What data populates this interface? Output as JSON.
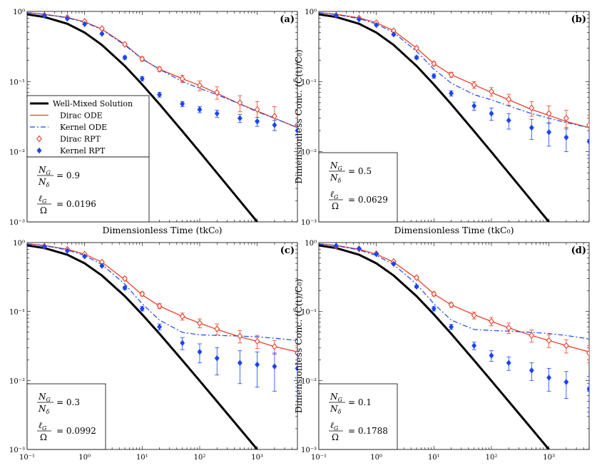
{
  "colors": {
    "well_mixed": "#000000",
    "dirac": "#e8412a",
    "kernel": "#1a45f2"
  },
  "legend_labels": [
    "Well-Mixed Solution",
    "Dirac ODE",
    "Kernel ODE",
    "Dirac RPT",
    "Kernel RPT"
  ],
  "chart_data": [
    {
      "type": "line",
      "panel_label": "(a)",
      "xscale": "log",
      "yscale": "log",
      "xlim": [
        0.1,
        5000
      ],
      "ylim": [
        0.001,
        1
      ],
      "xlabel": "Dimensionless Time (tkC₀)",
      "ylabel": "",
      "x_ticks": [
        "10⁻¹",
        "10⁰",
        "10¹",
        "10²",
        "10³"
      ],
      "y_ticks": [
        "10⁰",
        "10⁻¹",
        "10⁻²",
        "10⁻³"
      ],
      "show_x_tick_labels": false,
      "legend": true,
      "annotation": {
        "ng_ratio": "= 0.9",
        "lg_ratio": "= 0.0196"
      },
      "series": [
        {
          "name": "Well-Mixed Solution",
          "kind": "line",
          "x": [
            0.1,
            0.2,
            0.5,
            1,
            2,
            5,
            10,
            20,
            50,
            100,
            200,
            500,
            1000
          ],
          "y": [
            0.909,
            0.833,
            0.667,
            0.5,
            0.333,
            0.167,
            0.0909,
            0.0476,
            0.0196,
            0.0099,
            0.00498,
            0.002,
            0.001
          ]
        },
        {
          "name": "Dirac ODE",
          "kind": "line",
          "x": [
            0.1,
            0.2,
            0.5,
            1,
            2,
            5,
            10,
            20,
            50,
            100,
            200,
            500,
            1000,
            2000,
            5000
          ],
          "y": [
            0.96,
            0.91,
            0.82,
            0.71,
            0.56,
            0.34,
            0.21,
            0.15,
            0.11,
            0.088,
            0.068,
            0.048,
            0.038,
            0.03,
            0.022
          ]
        },
        {
          "name": "Kernel ODE",
          "kind": "line",
          "x": [
            0.1,
            0.2,
            0.5,
            1,
            2,
            5,
            10,
            20,
            50,
            100,
            200,
            500,
            1000,
            2000,
            5000
          ],
          "y": [
            0.96,
            0.905,
            0.81,
            0.7,
            0.55,
            0.33,
            0.21,
            0.15,
            0.1,
            0.08,
            0.065,
            0.048,
            0.037,
            0.03,
            0.022
          ]
        },
        {
          "name": "Dirac RPT",
          "kind": "markers",
          "x": [
            0.2,
            0.5,
            1,
            2,
            5,
            10,
            20,
            50,
            100,
            200,
            500,
            1000,
            2000,
            5000
          ],
          "y": [
            0.88,
            0.82,
            0.72,
            0.57,
            0.34,
            0.21,
            0.15,
            0.11,
            0.088,
            0.07,
            0.05,
            0.04,
            0.032,
            0.024
          ],
          "err": [
            0.01,
            0.01,
            0.015,
            0.015,
            0.015,
            0.015,
            0.012,
            0.013,
            0.014,
            0.014,
            0.013,
            0.012,
            0.012,
            0.011
          ]
        },
        {
          "name": "Kernel RPT",
          "kind": "markers",
          "x": [
            0.2,
            0.5,
            1,
            2,
            5,
            10,
            20,
            50,
            100,
            200,
            500,
            1000,
            2000,
            5000
          ],
          "y": [
            0.87,
            0.79,
            0.66,
            0.48,
            0.22,
            0.11,
            0.065,
            0.048,
            0.04,
            0.035,
            0.03,
            0.027,
            0.024,
            0.02
          ],
          "err": [
            0.01,
            0.01,
            0.012,
            0.012,
            0.012,
            0.008,
            0.005,
            0.004,
            0.004,
            0.004,
            0.004,
            0.004,
            0.004,
            0.004
          ]
        }
      ]
    },
    {
      "type": "line",
      "panel_label": "(b)",
      "xscale": "log",
      "yscale": "log",
      "xlim": [
        0.1,
        5000
      ],
      "ylim": [
        0.001,
        1
      ],
      "xlabel": "Dimensionless Time (tkC₀)",
      "ylabel": "Dimensionless Conc. (C̄(t)/C₀)",
      "x_ticks": [
        "10⁻¹",
        "10⁰",
        "10¹",
        "10²",
        "10³"
      ],
      "y_ticks": [
        "10⁰",
        "10⁻¹",
        "10⁻²",
        "10⁻³"
      ],
      "show_x_tick_labels": false,
      "legend": false,
      "annotation": {
        "ng_ratio": "= 0.5",
        "lg_ratio": "= 0.0629"
      },
      "series": [
        {
          "name": "Well-Mixed Solution",
          "kind": "line",
          "x": [
            0.1,
            0.2,
            0.5,
            1,
            2,
            5,
            10,
            20,
            50,
            100,
            200,
            500,
            1000
          ],
          "y": [
            0.909,
            0.833,
            0.667,
            0.5,
            0.333,
            0.167,
            0.0909,
            0.0476,
            0.0196,
            0.0099,
            0.00498,
            0.002,
            0.001
          ]
        },
        {
          "name": "Dirac ODE",
          "kind": "line",
          "x": [
            0.1,
            0.2,
            0.5,
            1,
            2,
            5,
            10,
            20,
            50,
            100,
            200,
            500,
            1000,
            2000,
            5000
          ],
          "y": [
            0.96,
            0.91,
            0.81,
            0.69,
            0.53,
            0.3,
            0.18,
            0.125,
            0.09,
            0.07,
            0.055,
            0.04,
            0.033,
            0.027,
            0.022
          ]
        },
        {
          "name": "Kernel ODE",
          "kind": "line",
          "x": [
            0.1,
            0.2,
            0.5,
            1,
            2,
            5,
            10,
            20,
            50,
            100,
            200,
            500,
            1000,
            2000,
            5000
          ],
          "y": [
            0.96,
            0.9,
            0.79,
            0.66,
            0.5,
            0.27,
            0.15,
            0.095,
            0.065,
            0.055,
            0.045,
            0.035,
            0.03,
            0.026,
            0.022
          ]
        },
        {
          "name": "Dirac RPT",
          "kind": "markers",
          "x": [
            0.2,
            0.5,
            1,
            2,
            5,
            10,
            20,
            50,
            100,
            200,
            500,
            1000,
            2000,
            5000
          ],
          "y": [
            0.88,
            0.8,
            0.69,
            0.53,
            0.3,
            0.18,
            0.125,
            0.09,
            0.072,
            0.056,
            0.042,
            0.035,
            0.03,
            0.024
          ],
          "err": [
            0.01,
            0.01,
            0.015,
            0.015,
            0.015,
            0.012,
            0.01,
            0.01,
            0.01,
            0.01,
            0.01,
            0.01,
            0.009,
            0.009
          ]
        },
        {
          "name": "Kernel RPT",
          "kind": "markers",
          "x": [
            0.2,
            0.5,
            1,
            2,
            5,
            10,
            20,
            50,
            100,
            200,
            500,
            1000,
            2000,
            5000
          ],
          "y": [
            0.87,
            0.77,
            0.64,
            0.47,
            0.22,
            0.12,
            0.068,
            0.045,
            0.035,
            0.028,
            0.022,
            0.019,
            0.016,
            0.014
          ],
          "err": [
            0.01,
            0.01,
            0.012,
            0.012,
            0.01,
            0.008,
            0.006,
            0.006,
            0.007,
            0.007,
            0.007,
            0.007,
            0.006,
            0.006
          ]
        }
      ]
    },
    {
      "type": "line",
      "panel_label": "(c)",
      "xscale": "log",
      "yscale": "log",
      "xlim": [
        0.1,
        5000
      ],
      "ylim": [
        0.001,
        1
      ],
      "xlabel": "",
      "ylabel": "",
      "x_ticks": [
        "10⁻¹",
        "10⁰",
        "10¹",
        "10²",
        "10³"
      ],
      "y_ticks": [
        "10⁰",
        "10⁻¹",
        "10⁻²",
        "10⁻³"
      ],
      "show_x_tick_labels": true,
      "legend": false,
      "annotation": {
        "ng_ratio": "= 0.3",
        "lg_ratio": "= 0.0992"
      },
      "series": [
        {
          "name": "Well-Mixed Solution",
          "kind": "line",
          "x": [
            0.1,
            0.2,
            0.5,
            1,
            2,
            5,
            10,
            20,
            50,
            100,
            200,
            500,
            1000
          ],
          "y": [
            0.909,
            0.833,
            0.667,
            0.5,
            0.333,
            0.167,
            0.0909,
            0.0476,
            0.0196,
            0.0099,
            0.00498,
            0.002,
            0.001
          ]
        },
        {
          "name": "Dirac ODE",
          "kind": "line",
          "x": [
            0.1,
            0.2,
            0.5,
            1,
            2,
            5,
            10,
            20,
            50,
            100,
            200,
            500,
            1000,
            2000,
            5000
          ],
          "y": [
            0.96,
            0.91,
            0.8,
            0.68,
            0.52,
            0.29,
            0.175,
            0.12,
            0.085,
            0.068,
            0.055,
            0.043,
            0.037,
            0.031,
            0.026
          ]
        },
        {
          "name": "Kernel ODE",
          "kind": "line",
          "x": [
            0.1,
            0.2,
            0.5,
            1,
            2,
            5,
            10,
            20,
            50,
            100,
            200,
            500,
            1000,
            2000,
            5000
          ],
          "y": [
            0.96,
            0.9,
            0.78,
            0.65,
            0.48,
            0.25,
            0.13,
            0.075,
            0.05,
            0.046,
            0.045,
            0.044,
            0.043,
            0.041,
            0.038
          ]
        },
        {
          "name": "Dirac RPT",
          "kind": "markers",
          "x": [
            0.2,
            0.5,
            1,
            2,
            5,
            10,
            20,
            50,
            100,
            200,
            500,
            1000,
            2000,
            5000
          ],
          "y": [
            0.88,
            0.8,
            0.68,
            0.52,
            0.3,
            0.18,
            0.12,
            0.085,
            0.068,
            0.056,
            0.044,
            0.037,
            0.031,
            0.025
          ],
          "err": [
            0.01,
            0.01,
            0.015,
            0.015,
            0.015,
            0.012,
            0.01,
            0.01,
            0.01,
            0.01,
            0.009,
            0.008,
            0.007,
            0.007
          ]
        },
        {
          "name": "Kernel RPT",
          "kind": "markers",
          "x": [
            0.2,
            0.5,
            1,
            2,
            5,
            10,
            20,
            50,
            100,
            200,
            500,
            1000,
            2000,
            5000
          ],
          "y": [
            0.87,
            0.76,
            0.63,
            0.46,
            0.22,
            0.11,
            0.06,
            0.035,
            0.026,
            0.021,
            0.018,
            0.017,
            0.016,
            0.015
          ],
          "err": [
            0.01,
            0.01,
            0.012,
            0.012,
            0.01,
            0.008,
            0.006,
            0.007,
            0.008,
            0.009,
            0.009,
            0.009,
            0.009,
            0.009
          ]
        }
      ]
    },
    {
      "type": "line",
      "panel_label": "(d)",
      "xscale": "log",
      "yscale": "log",
      "xlim": [
        0.1,
        5000
      ],
      "ylim": [
        0.001,
        1
      ],
      "xlabel": "",
      "ylabel": "Dimensionless Conc. (C̄(t)/C₀)",
      "x_ticks": [
        "10⁻¹",
        "10⁰",
        "10¹",
        "10²",
        "10³"
      ],
      "y_ticks": [
        "10⁰",
        "10⁻¹",
        "10⁻²",
        "10⁻³"
      ],
      "show_x_tick_labels": true,
      "legend": false,
      "annotation": {
        "ng_ratio": "= 0.1",
        "lg_ratio": "= 0.1788"
      },
      "series": [
        {
          "name": "Well-Mixed Solution",
          "kind": "line",
          "x": [
            0.1,
            0.2,
            0.5,
            1,
            2,
            5,
            10,
            20,
            50,
            100,
            200,
            500,
            1000
          ],
          "y": [
            0.909,
            0.833,
            0.667,
            0.5,
            0.333,
            0.167,
            0.0909,
            0.0476,
            0.0196,
            0.0099,
            0.00498,
            0.002,
            0.001
          ]
        },
        {
          "name": "Dirac ODE",
          "kind": "line",
          "x": [
            0.1,
            0.2,
            0.5,
            1,
            2,
            5,
            10,
            20,
            50,
            100,
            200,
            500,
            1000,
            2000,
            5000
          ],
          "y": [
            0.96,
            0.91,
            0.8,
            0.68,
            0.52,
            0.3,
            0.18,
            0.125,
            0.09,
            0.072,
            0.058,
            0.045,
            0.038,
            0.032,
            0.026
          ]
        },
        {
          "name": "Kernel ODE",
          "kind": "line",
          "x": [
            0.1,
            0.2,
            0.5,
            1,
            2,
            5,
            10,
            20,
            50,
            100,
            200,
            500,
            1000,
            2000,
            5000
          ],
          "y": [
            0.96,
            0.9,
            0.78,
            0.65,
            0.48,
            0.25,
            0.13,
            0.075,
            0.055,
            0.053,
            0.052,
            0.05,
            0.048,
            0.045,
            0.04
          ]
        },
        {
          "name": "Dirac RPT",
          "kind": "markers",
          "x": [
            0.2,
            0.5,
            1,
            2,
            5,
            10,
            20,
            50,
            100,
            200,
            500,
            1000,
            2000,
            5000
          ],
          "y": [
            0.88,
            0.81,
            0.69,
            0.53,
            0.31,
            0.18,
            0.125,
            0.088,
            0.072,
            0.058,
            0.045,
            0.038,
            0.032,
            0.025
          ],
          "err": [
            0.01,
            0.01,
            0.015,
            0.015,
            0.015,
            0.012,
            0.01,
            0.01,
            0.01,
            0.01,
            0.009,
            0.008,
            0.007,
            0.007
          ]
        },
        {
          "name": "Kernel RPT",
          "kind": "markers",
          "x": [
            0.2,
            0.5,
            1,
            2,
            5,
            10,
            20,
            50,
            100,
            200,
            500,
            1000,
            2000,
            5000
          ],
          "y": [
            0.9,
            0.82,
            0.68,
            0.49,
            0.23,
            0.11,
            0.06,
            0.032,
            0.023,
            0.018,
            0.014,
            0.011,
            0.0095,
            0.0075
          ],
          "err": [
            0.01,
            0.01,
            0.012,
            0.012,
            0.01,
            0.008,
            0.005,
            0.004,
            0.004,
            0.004,
            0.004,
            0.004,
            0.004,
            0.004
          ]
        }
      ]
    }
  ]
}
